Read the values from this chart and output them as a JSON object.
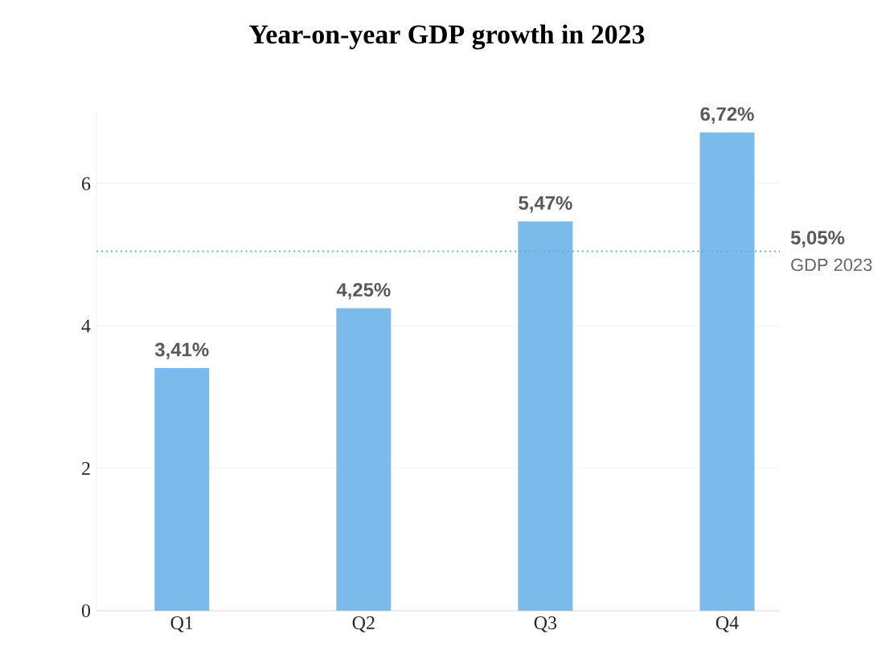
{
  "chart_data": {
    "type": "bar",
    "title": "Year-on-year GDP growth in 2023",
    "categories": [
      "Q1",
      "Q2",
      "Q3",
      "Q4"
    ],
    "values": [
      3.41,
      4.25,
      5.47,
      6.72
    ],
    "value_labels": [
      "3,41%",
      "4,25%",
      "5,47%",
      "6,72%"
    ],
    "color": "#7bbbec",
    "ylim": [
      0,
      7
    ],
    "yticks": [
      0,
      2,
      4,
      6
    ],
    "grid": "y",
    "ref_lines": [
      {
        "axis": "y",
        "value": 5.05,
        "label": "GDP 2023",
        "color": "#6aaee0",
        "line_style": "dotted"
      }
    ],
    "annotations": [
      "5,05%"
    ]
  }
}
